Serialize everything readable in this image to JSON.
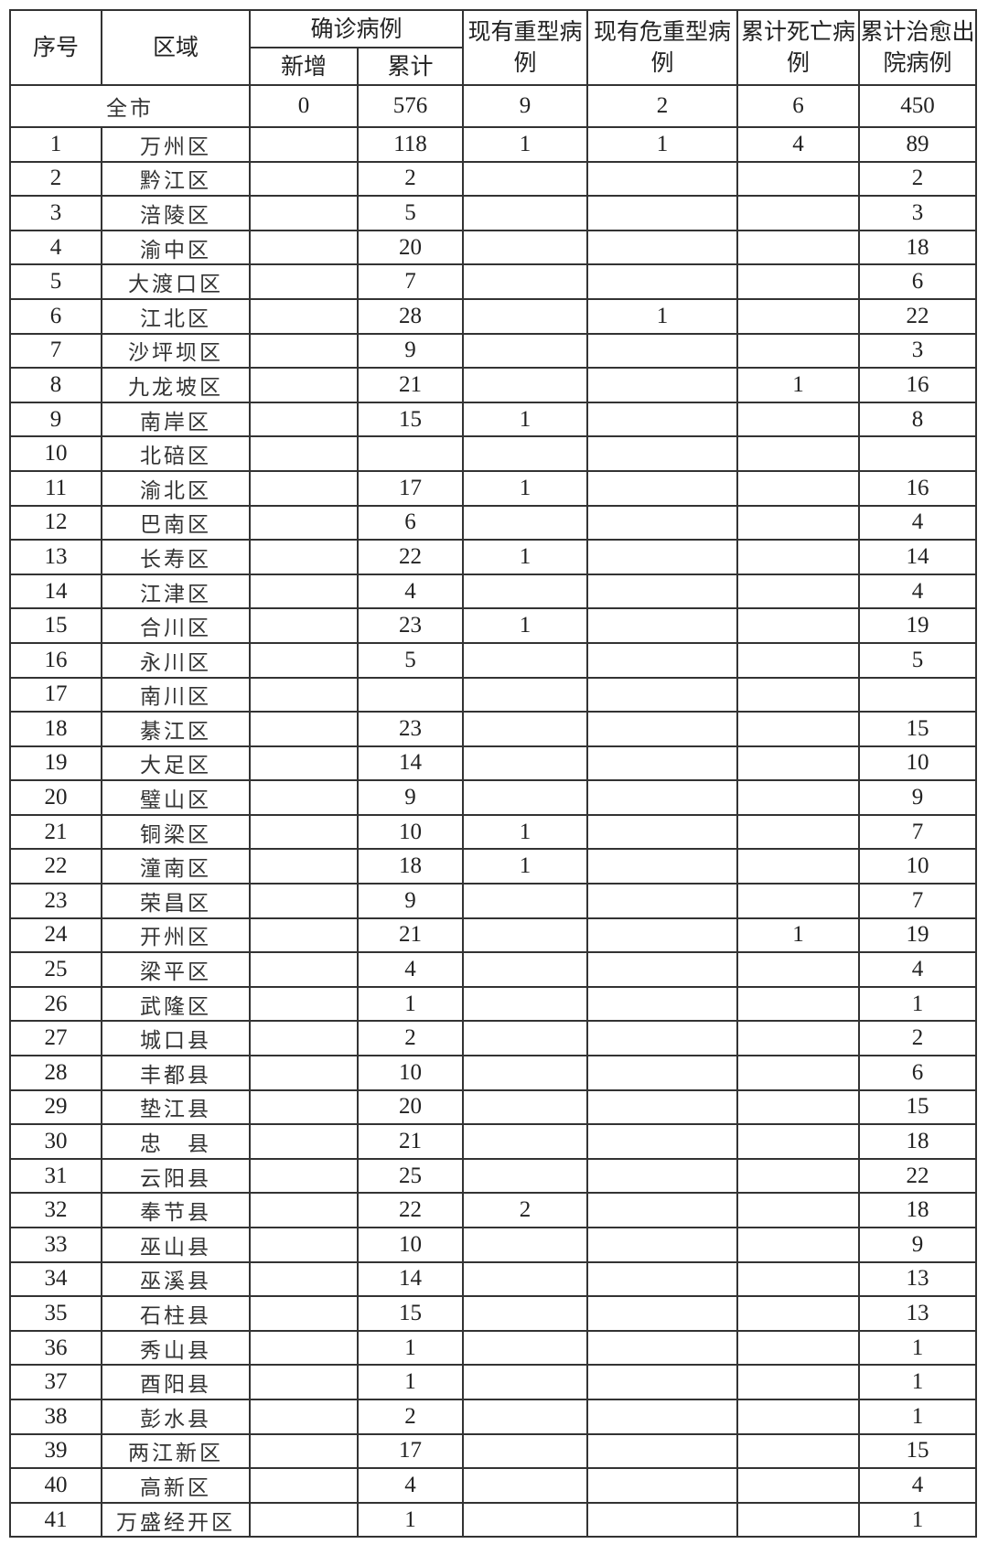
{
  "headers": {
    "index": "序号",
    "region": "区域",
    "confirmed": "确诊病例",
    "new": "新增",
    "cumulative": "累计",
    "severe": "现有重型病例",
    "critical": "现有危重型病例",
    "deaths": "累计死亡病例",
    "recovered": "累计治愈出院病例"
  },
  "total": {
    "label": "全市",
    "new": "0",
    "cumulative": "576",
    "severe": "9",
    "critical": "2",
    "deaths": "6",
    "recovered": "450"
  },
  "rows": [
    [
      "1",
      "万州区",
      "",
      "118",
      "1",
      "1",
      "4",
      "89"
    ],
    [
      "2",
      "黔江区",
      "",
      "2",
      "",
      "",
      "",
      "2"
    ],
    [
      "3",
      "涪陵区",
      "",
      "5",
      "",
      "",
      "",
      "3"
    ],
    [
      "4",
      "渝中区",
      "",
      "20",
      "",
      "",
      "",
      "18"
    ],
    [
      "5",
      "大渡口区",
      "",
      "7",
      "",
      "",
      "",
      "6"
    ],
    [
      "6",
      "江北区",
      "",
      "28",
      "",
      "1",
      "",
      "22"
    ],
    [
      "7",
      "沙坪坝区",
      "",
      "9",
      "",
      "",
      "",
      "3"
    ],
    [
      "8",
      "九龙坡区",
      "",
      "21",
      "",
      "",
      "1",
      "16"
    ],
    [
      "9",
      "南岸区",
      "",
      "15",
      "1",
      "",
      "",
      "8"
    ],
    [
      "10",
      "北碚区",
      "",
      "",
      "",
      "",
      "",
      ""
    ],
    [
      "11",
      "渝北区",
      "",
      "17",
      "1",
      "",
      "",
      "16"
    ],
    [
      "12",
      "巴南区",
      "",
      "6",
      "",
      "",
      "",
      "4"
    ],
    [
      "13",
      "长寿区",
      "",
      "22",
      "1",
      "",
      "",
      "14"
    ],
    [
      "14",
      "江津区",
      "",
      "4",
      "",
      "",
      "",
      "4"
    ],
    [
      "15",
      "合川区",
      "",
      "23",
      "1",
      "",
      "",
      "19"
    ],
    [
      "16",
      "永川区",
      "",
      "5",
      "",
      "",
      "",
      "5"
    ],
    [
      "17",
      "南川区",
      "",
      "",
      "",
      "",
      "",
      ""
    ],
    [
      "18",
      "綦江区",
      "",
      "23",
      "",
      "",
      "",
      "15"
    ],
    [
      "19",
      "大足区",
      "",
      "14",
      "",
      "",
      "",
      "10"
    ],
    [
      "20",
      "璧山区",
      "",
      "9",
      "",
      "",
      "",
      "9"
    ],
    [
      "21",
      "铜梁区",
      "",
      "10",
      "1",
      "",
      "",
      "7"
    ],
    [
      "22",
      "潼南区",
      "",
      "18",
      "1",
      "",
      "",
      "10"
    ],
    [
      "23",
      "荣昌区",
      "",
      "9",
      "",
      "",
      "",
      "7"
    ],
    [
      "24",
      "开州区",
      "",
      "21",
      "",
      "",
      "1",
      "19"
    ],
    [
      "25",
      "梁平区",
      "",
      "4",
      "",
      "",
      "",
      "4"
    ],
    [
      "26",
      "武隆区",
      "",
      "1",
      "",
      "",
      "",
      "1"
    ],
    [
      "27",
      "城口县",
      "",
      "2",
      "",
      "",
      "",
      "2"
    ],
    [
      "28",
      "丰都县",
      "",
      "10",
      "",
      "",
      "",
      "6"
    ],
    [
      "29",
      "垫江县",
      "",
      "20",
      "",
      "",
      "",
      "15"
    ],
    [
      "30",
      "忠　县",
      "",
      "21",
      "",
      "",
      "",
      "18"
    ],
    [
      "31",
      "云阳县",
      "",
      "25",
      "",
      "",
      "",
      "22"
    ],
    [
      "32",
      "奉节县",
      "",
      "22",
      "2",
      "",
      "",
      "18"
    ],
    [
      "33",
      "巫山县",
      "",
      "10",
      "",
      "",
      "",
      "9"
    ],
    [
      "34",
      "巫溪县",
      "",
      "14",
      "",
      "",
      "",
      "13"
    ],
    [
      "35",
      "石柱县",
      "",
      "15",
      "",
      "",
      "",
      "13"
    ],
    [
      "36",
      "秀山县",
      "",
      "1",
      "",
      "",
      "",
      "1"
    ],
    [
      "37",
      "酉阳县",
      "",
      "1",
      "",
      "",
      "",
      "1"
    ],
    [
      "38",
      "彭水县",
      "",
      "2",
      "",
      "",
      "",
      "1"
    ],
    [
      "39",
      "两江新区",
      "",
      "17",
      "",
      "",
      "",
      "15"
    ],
    [
      "40",
      "高新区",
      "",
      "4",
      "",
      "",
      "",
      "4"
    ],
    [
      "41",
      "万盛经开区",
      "",
      "1",
      "",
      "",
      "",
      "1"
    ]
  ]
}
